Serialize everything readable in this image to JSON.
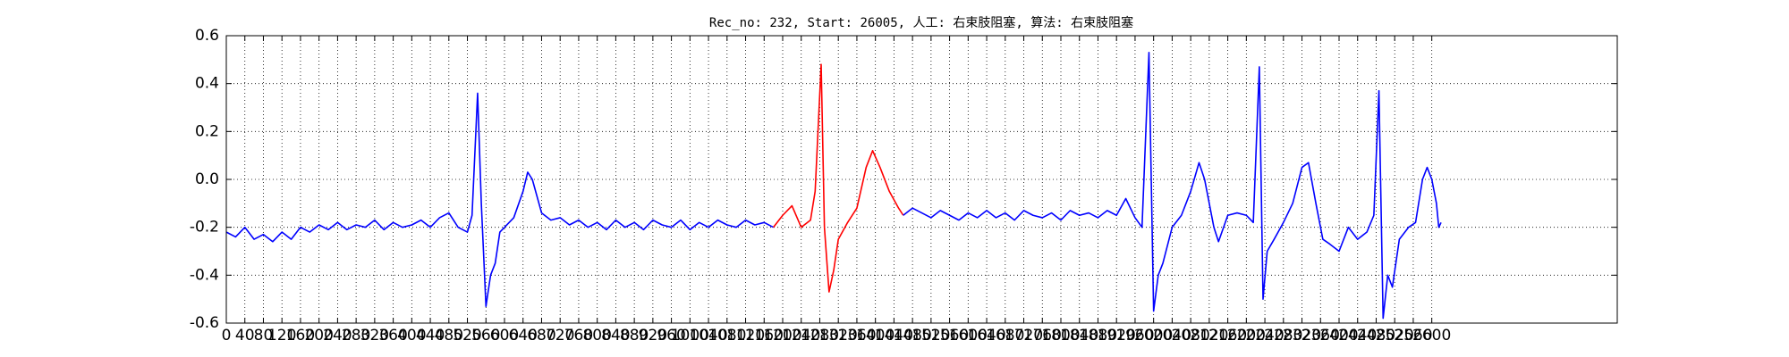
{
  "chart_data": {
    "type": "line",
    "title": "Rec_no: 232, Start: 26005, 人工: 右束肢阻塞, 算法: 右束肢阻塞",
    "xlim": [
      0,
      3000
    ],
    "ylim": [
      -0.6,
      0.6
    ],
    "xticks": [
      0,
      40,
      80,
      120,
      160,
      200,
      240,
      280,
      320,
      360,
      400,
      440,
      480,
      520,
      560,
      600,
      640,
      680,
      720,
      760,
      800,
      840,
      880,
      920,
      960,
      1000,
      1040,
      1080,
      1120,
      1160,
      1200,
      1240,
      1280,
      1320,
      1360,
      1400,
      1440,
      1480,
      1520,
      1560,
      1600,
      1640,
      1680,
      1720,
      1760,
      1800,
      1840,
      1880,
      1920,
      1960,
      2000,
      2040,
      2080,
      2120,
      2160,
      2200,
      2240,
      2280,
      2320,
      2360,
      2400,
      2440,
      2480,
      2520,
      2560,
      2600
    ],
    "yticks": [
      -0.6,
      -0.4,
      -0.2,
      {
        "value": 0,
        "label": "0.0"
      },
      0.2,
      0.4,
      0.6
    ],
    "grid": true,
    "series": [
      {
        "color": "#0000ff",
        "x": [
          0,
          20,
          40,
          60,
          80,
          100,
          120,
          140,
          160,
          180,
          200,
          220,
          240,
          260,
          280,
          300,
          320,
          340,
          360,
          380,
          400,
          420,
          440,
          460,
          480,
          500,
          520,
          530,
          542,
          550,
          560,
          570,
          580,
          590,
          600,
          620,
          640,
          650,
          660,
          680,
          700,
          720,
          740,
          760,
          780,
          800,
          820,
          840,
          860,
          880,
          900,
          920,
          940,
          960,
          980,
          1000,
          1020,
          1040,
          1060,
          1080,
          1100,
          1120,
          1140,
          1160,
          1180
        ],
        "values": [
          -0.22,
          -0.24,
          -0.2,
          -0.25,
          -0.23,
          -0.26,
          -0.22,
          -0.25,
          -0.2,
          -0.22,
          -0.19,
          -0.21,
          -0.18,
          -0.21,
          -0.19,
          -0.2,
          -0.17,
          -0.21,
          -0.18,
          -0.2,
          -0.19,
          -0.17,
          -0.2,
          -0.16,
          -0.14,
          -0.2,
          -0.22,
          -0.15,
          0.36,
          -0.1,
          -0.53,
          -0.4,
          -0.35,
          -0.22,
          -0.2,
          -0.16,
          -0.05,
          0.03,
          0,
          -0.14,
          -0.17,
          -0.16,
          -0.19,
          -0.17,
          -0.2,
          -0.18,
          -0.21,
          -0.17,
          -0.2,
          -0.18,
          -0.21,
          -0.17,
          -0.19,
          -0.2,
          -0.17,
          -0.21,
          -0.18,
          -0.2,
          -0.17,
          -0.19,
          -0.2,
          -0.17,
          -0.19,
          -0.18,
          -0.2
        ]
      },
      {
        "color": "#ff0000",
        "x": [
          1180,
          1200,
          1220,
          1240,
          1260,
          1270,
          1283,
          1290,
          1300,
          1310,
          1320,
          1340,
          1360,
          1380,
          1394,
          1410,
          1430,
          1450,
          1460
        ],
        "values": [
          -0.2,
          -0.15,
          -0.11,
          -0.2,
          -0.17,
          -0.05,
          0.48,
          -0.2,
          -0.47,
          -0.38,
          -0.25,
          -0.18,
          -0.12,
          0.05,
          0.12,
          0.05,
          -0.05,
          -0.12,
          -0.15
        ]
      },
      {
        "color": "#0000ff",
        "x": [
          1460,
          1480,
          1500,
          1520,
          1540,
          1560,
          1580,
          1600,
          1620,
          1640,
          1660,
          1680,
          1700,
          1720,
          1740,
          1760,
          1780,
          1800,
          1820,
          1840,
          1860,
          1880,
          1900,
          1920,
          1940,
          1960,
          1975,
          1990,
          2000,
          2010,
          2020,
          2040,
          2060,
          2080,
          2098,
          2110,
          2130,
          2140,
          2160,
          2180,
          2200,
          2215,
          2228,
          2236,
          2245,
          2260,
          2280,
          2300,
          2320,
          2334,
          2350,
          2365,
          2380,
          2400,
          2420,
          2440,
          2460,
          2475,
          2486,
          2495,
          2505,
          2515,
          2530,
          2550,
          2565,
          2580,
          2590,
          2600,
          2610,
          2615,
          2620
        ],
        "values": [
          -0.15,
          -0.12,
          -0.14,
          -0.16,
          -0.13,
          -0.15,
          -0.17,
          -0.14,
          -0.16,
          -0.13,
          -0.16,
          -0.14,
          -0.17,
          -0.13,
          -0.15,
          -0.16,
          -0.14,
          -0.17,
          -0.13,
          -0.15,
          -0.14,
          -0.16,
          -0.13,
          -0.15,
          -0.08,
          -0.16,
          -0.2,
          0.53,
          -0.55,
          -0.4,
          -0.35,
          -0.2,
          -0.15,
          -0.05,
          0.07,
          0,
          -0.2,
          -0.26,
          -0.15,
          -0.14,
          -0.15,
          -0.18,
          0.47,
          -0.5,
          -0.3,
          -0.25,
          -0.18,
          -0.1,
          0.05,
          0.07,
          -0.1,
          -0.25,
          -0.27,
          -0.3,
          -0.2,
          -0.25,
          -0.22,
          -0.15,
          0.37,
          -0.58,
          -0.4,
          -0.45,
          -0.25,
          -0.2,
          -0.18,
          0,
          0.05,
          0,
          -0.1,
          -0.2,
          -0.18
        ]
      }
    ]
  }
}
